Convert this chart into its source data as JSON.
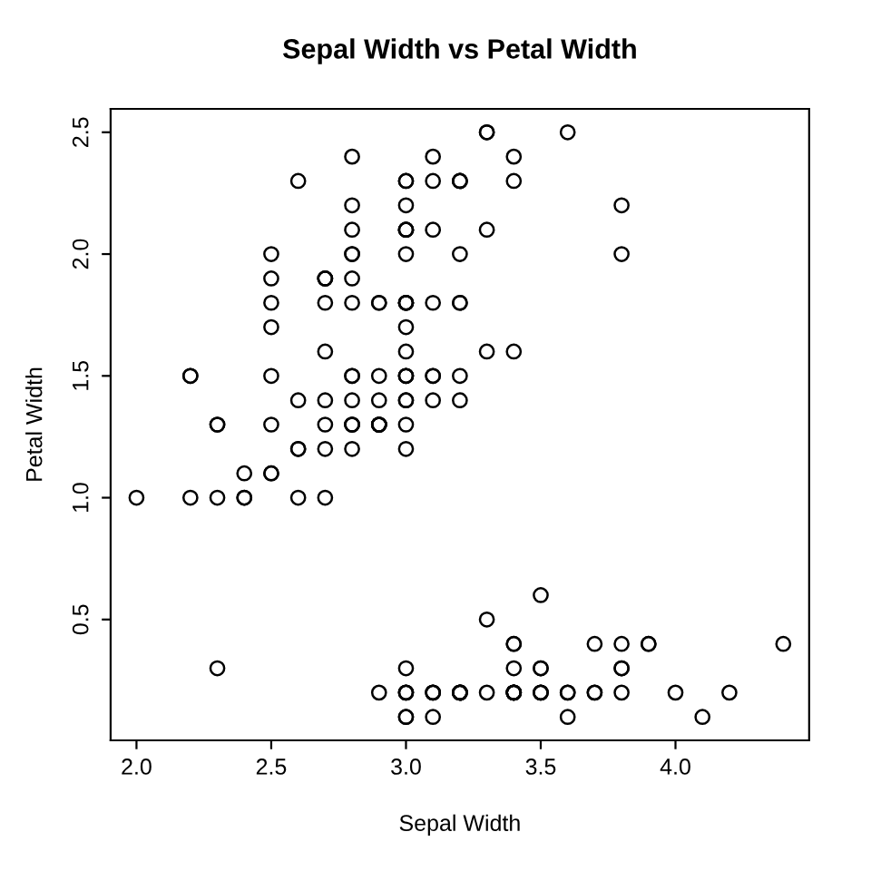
{
  "chart_data": {
    "type": "scatter",
    "title": "Sepal Width vs Petal Width",
    "xlabel": "Sepal Width",
    "ylabel": "Petal Width",
    "marker": "circle",
    "grid": false,
    "legend": false,
    "xlim": [
      1.904,
      4.496
    ],
    "ylim": [
      0.004,
      2.596
    ],
    "xticks": [
      {
        "value": 2,
        "label": "2.0"
      },
      {
        "value": 2.5,
        "label": "2.5"
      },
      {
        "value": 3,
        "label": "3.0"
      },
      {
        "value": 3.5,
        "label": "3.5"
      },
      {
        "value": 4,
        "label": "4.0"
      }
    ],
    "yticks": [
      {
        "value": 0.5,
        "label": "0.5"
      },
      {
        "value": 1,
        "label": "1.0"
      },
      {
        "value": 1.5,
        "label": "1.5"
      },
      {
        "value": 2,
        "label": "2.0"
      },
      {
        "value": 2.5,
        "label": "2.5"
      }
    ],
    "series": [
      {
        "color": "#000000",
        "x": [
          3.5,
          3.0,
          3.2,
          3.1,
          3.6,
          3.9,
          3.4,
          3.4,
          2.9,
          3.1,
          3.7,
          3.4,
          3.0,
          3.0,
          4.0,
          4.4,
          3.9,
          3.5,
          3.8,
          3.8,
          3.4,
          3.7,
          3.6,
          3.3,
          3.4,
          3.0,
          3.4,
          3.5,
          3.4,
          3.2,
          3.1,
          3.4,
          4.1,
          4.2,
          3.1,
          3.2,
          3.5,
          3.6,
          3.0,
          3.4,
          3.5,
          2.3,
          3.2,
          3.5,
          3.8,
          3.0,
          3.8,
          3.2,
          3.7,
          3.3,
          3.2,
          3.2,
          3.1,
          2.3,
          2.8,
          2.8,
          3.3,
          2.4,
          2.9,
          2.7,
          2.0,
          3.0,
          2.2,
          2.9,
          2.9,
          3.1,
          3.0,
          2.7,
          2.2,
          2.5,
          3.2,
          2.8,
          2.5,
          2.8,
          2.9,
          3.0,
          2.8,
          3.0,
          2.9,
          2.6,
          2.4,
          2.4,
          2.7,
          2.7,
          3.0,
          3.4,
          3.1,
          2.3,
          3.0,
          2.5,
          2.6,
          3.0,
          2.6,
          2.3,
          2.7,
          3.0,
          2.9,
          2.9,
          2.5,
          2.8,
          3.3,
          2.7,
          3.0,
          2.9,
          3.0,
          3.0,
          2.5,
          2.9,
          2.5,
          3.6,
          3.2,
          2.7,
          3.0,
          2.5,
          2.8,
          3.2,
          3.0,
          3.8,
          2.6,
          2.2,
          3.2,
          2.8,
          2.8,
          2.7,
          3.3,
          3.2,
          2.8,
          3.0,
          2.8,
          3.0,
          2.8,
          3.8,
          2.8,
          2.8,
          2.6,
          3.0,
          3.4,
          3.1,
          3.0,
          3.1,
          3.1,
          3.1,
          2.7,
          3.2,
          3.3,
          3.0,
          2.5,
          3.0,
          3.4,
          3.0
        ],
        "values": [
          0.2,
          0.2,
          0.2,
          0.2,
          0.2,
          0.4,
          0.3,
          0.2,
          0.2,
          0.1,
          0.2,
          0.2,
          0.1,
          0.1,
          0.2,
          0.4,
          0.4,
          0.3,
          0.3,
          0.3,
          0.2,
          0.4,
          0.2,
          0.5,
          0.2,
          0.2,
          0.4,
          0.2,
          0.2,
          0.2,
          0.2,
          0.4,
          0.1,
          0.2,
          0.2,
          0.2,
          0.2,
          0.1,
          0.2,
          0.2,
          0.3,
          0.3,
          0.2,
          0.6,
          0.4,
          0.3,
          0.2,
          0.2,
          0.2,
          0.2,
          1.4,
          1.5,
          1.5,
          1.3,
          1.5,
          1.3,
          1.6,
          1.0,
          1.3,
          1.4,
          1.0,
          1.5,
          1.0,
          1.4,
          1.3,
          1.4,
          1.5,
          1.0,
          1.5,
          1.1,
          1.8,
          1.3,
          1.5,
          1.2,
          1.3,
          1.4,
          1.4,
          1.7,
          1.5,
          1.0,
          1.1,
          1.0,
          1.2,
          1.6,
          1.5,
          1.6,
          1.5,
          1.3,
          1.3,
          1.3,
          1.2,
          1.4,
          1.2,
          1.0,
          1.3,
          1.2,
          1.3,
          1.3,
          1.1,
          1.3,
          2.5,
          1.9,
          2.1,
          1.8,
          2.2,
          2.1,
          1.7,
          1.8,
          1.8,
          2.5,
          2.0,
          1.9,
          2.1,
          2.0,
          2.4,
          2.3,
          1.8,
          2.2,
          2.3,
          1.5,
          2.3,
          2.0,
          2.0,
          1.8,
          2.1,
          1.8,
          1.8,
          1.8,
          2.1,
          1.6,
          1.9,
          2.0,
          2.2,
          1.5,
          1.4,
          2.3,
          2.4,
          1.8,
          1.8,
          2.1,
          2.4,
          2.3,
          1.9,
          2.3,
          2.5,
          2.3,
          1.9,
          2.0,
          2.3,
          1.8
        ]
      }
    ]
  }
}
